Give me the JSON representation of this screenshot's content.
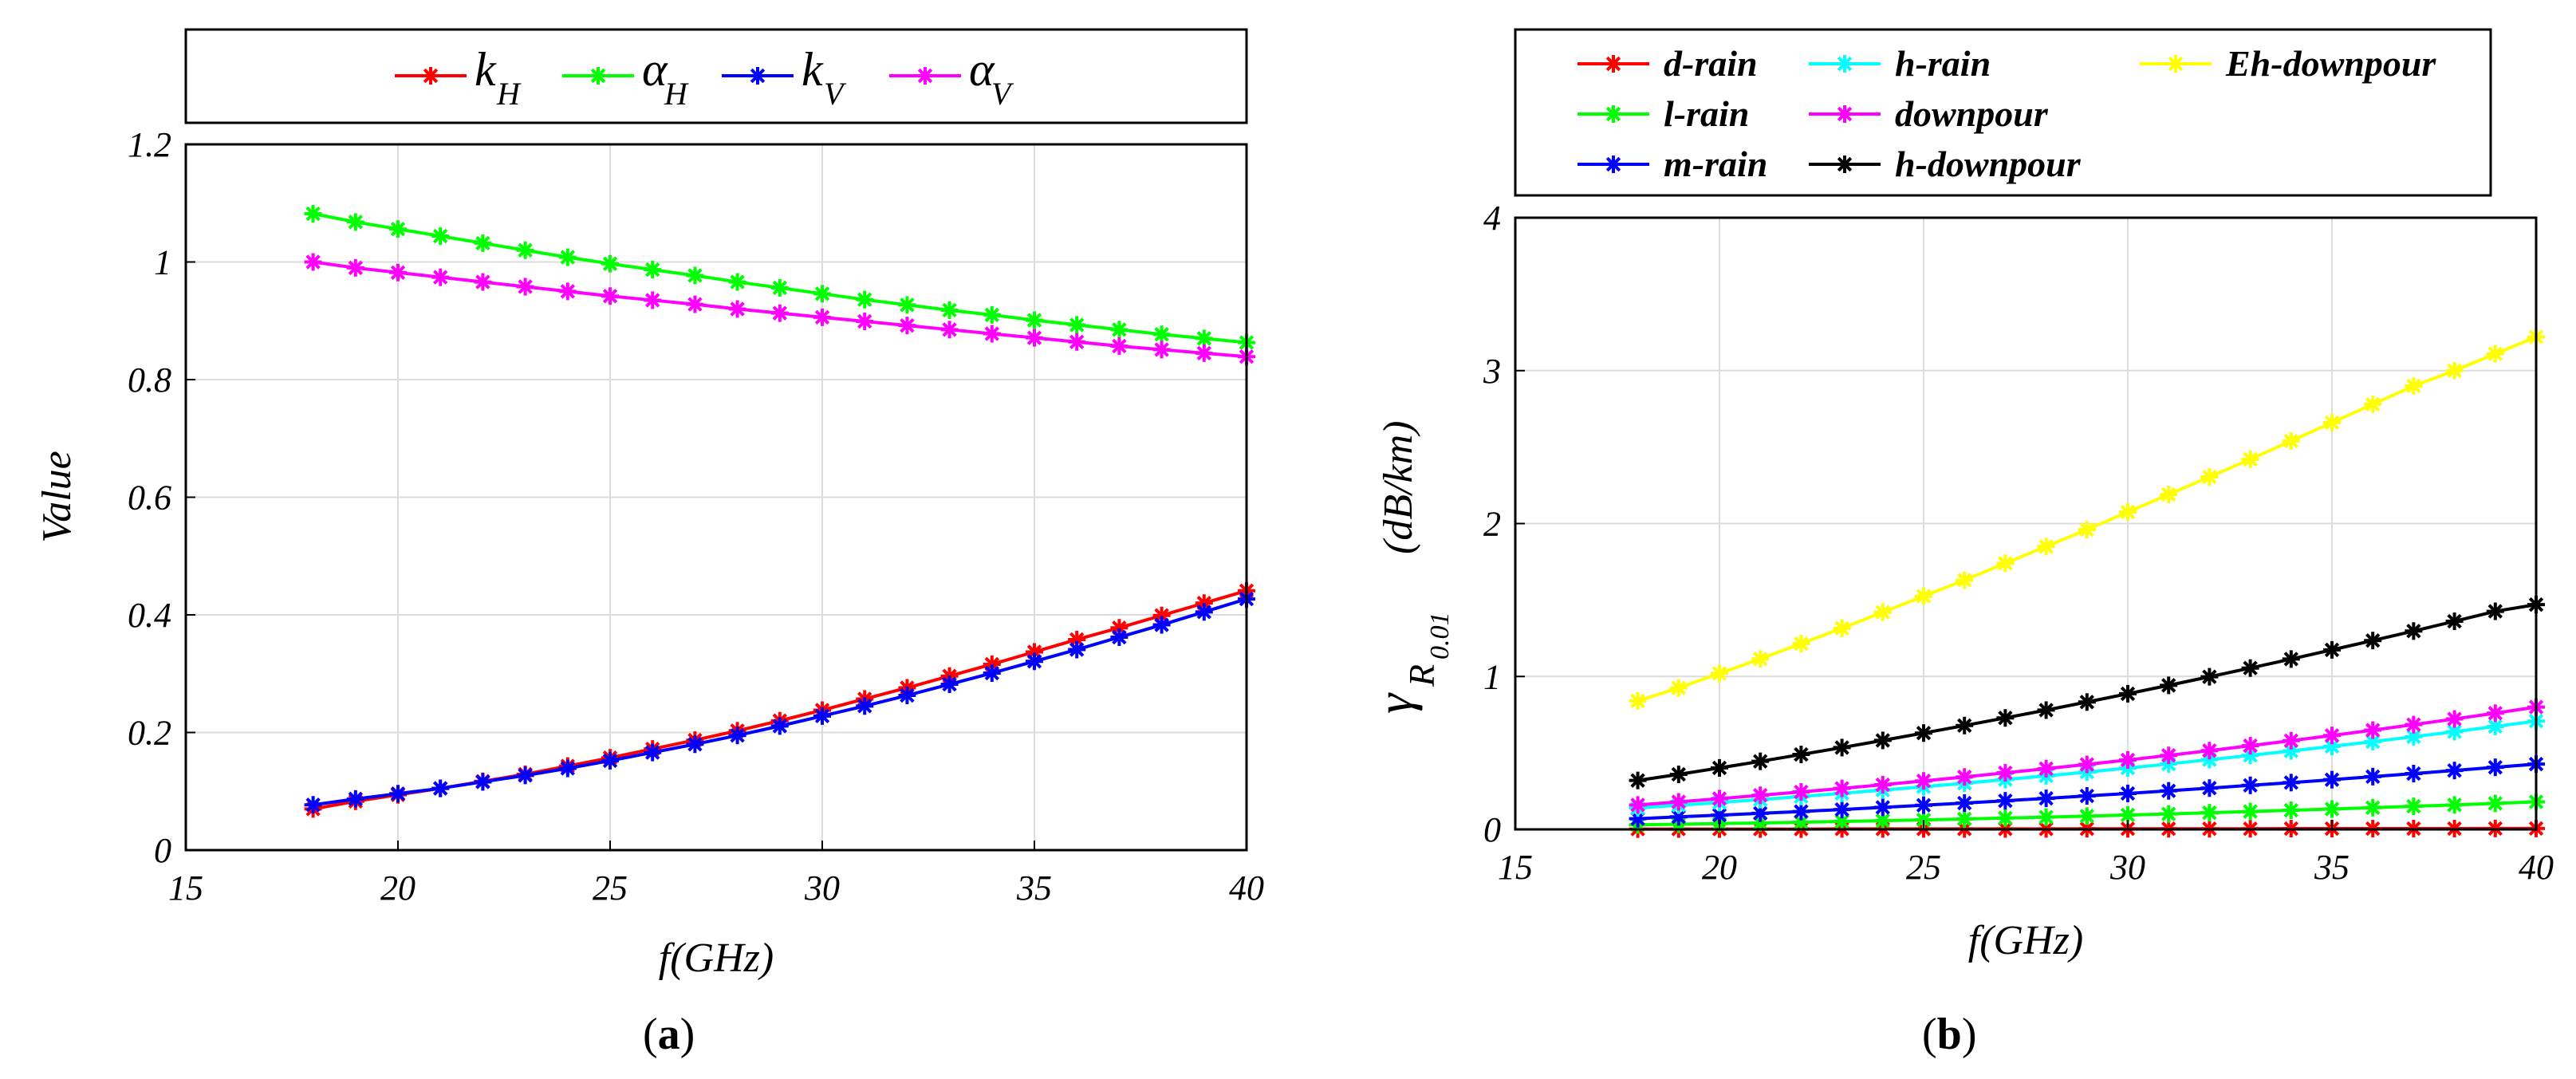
{
  "chart_data": [
    {
      "type": "line",
      "caption": "a",
      "title": "",
      "xlabel": "f(GHz)",
      "ylabel": "Value",
      "xlim": [
        15,
        40
      ],
      "ylim": [
        0,
        1.2
      ],
      "xticks": [
        "15",
        "20",
        "25",
        "30",
        "35",
        "40"
      ],
      "yticks": [
        "0",
        "0.2",
        "0.4",
        "0.6",
        "0.8",
        "1",
        "1.2"
      ],
      "grid": true,
      "legend_position": "top",
      "x": [
        18,
        19,
        20,
        21,
        22,
        23,
        24,
        25,
        26,
        27,
        28,
        29,
        30,
        31,
        32,
        33,
        34,
        35,
        36,
        37,
        38,
        39,
        40
      ],
      "series": [
        {
          "name": "k_H",
          "label_main": "k",
          "label_sub": "H",
          "color": "#ff0000",
          "values": [
            0.07,
            0.083,
            0.094,
            0.105,
            0.117,
            0.129,
            0.143,
            0.157,
            0.172,
            0.187,
            0.203,
            0.22,
            0.238,
            0.257,
            0.276,
            0.296,
            0.316,
            0.337,
            0.358,
            0.378,
            0.399,
            0.42,
            0.441
          ]
        },
        {
          "name": "alpha_H",
          "label_main": "α",
          "label_sub": "H",
          "color": "#00ff00",
          "values": [
            1.082,
            1.068,
            1.056,
            1.044,
            1.032,
            1.02,
            1.008,
            0.997,
            0.987,
            0.977,
            0.966,
            0.956,
            0.946,
            0.936,
            0.927,
            0.918,
            0.91,
            0.901,
            0.893,
            0.885,
            0.877,
            0.87,
            0.863
          ]
        },
        {
          "name": "k_V",
          "label_main": "k",
          "label_sub": "V",
          "color": "#0000ff",
          "values": [
            0.077,
            0.087,
            0.096,
            0.105,
            0.116,
            0.127,
            0.139,
            0.152,
            0.166,
            0.18,
            0.195,
            0.211,
            0.228,
            0.245,
            0.263,
            0.282,
            0.301,
            0.321,
            0.341,
            0.362,
            0.383,
            0.405,
            0.427
          ]
        },
        {
          "name": "alpha_V",
          "label_main": "α",
          "label_sub": "V",
          "color": "#ff00ff",
          "values": [
            1.0,
            0.99,
            0.982,
            0.974,
            0.966,
            0.958,
            0.95,
            0.942,
            0.935,
            0.928,
            0.92,
            0.913,
            0.906,
            0.899,
            0.892,
            0.885,
            0.878,
            0.871,
            0.864,
            0.857,
            0.851,
            0.845,
            0.839
          ]
        }
      ]
    },
    {
      "type": "line",
      "caption": "b",
      "title": "",
      "xlabel": "f(GHz)",
      "ylabel_symbol": "γ",
      "ylabel_sub_letter": "R",
      "ylabel_sub_sub": "0.01",
      "ylabel_unit": "(dB/km)",
      "xlim": [
        15,
        40
      ],
      "ylim": [
        0,
        4
      ],
      "xticks": [
        "15",
        "20",
        "25",
        "30",
        "35",
        "40"
      ],
      "yticks": [
        "0",
        "1",
        "2",
        "3",
        "4"
      ],
      "grid": true,
      "legend_position": "top",
      "x": [
        18,
        19,
        20,
        21,
        22,
        23,
        24,
        25,
        26,
        27,
        28,
        29,
        30,
        31,
        32,
        33,
        34,
        35,
        36,
        37,
        38,
        39,
        40
      ],
      "series": [
        {
          "name": "d-rain",
          "color": "#ff0000",
          "values": [
            0.002,
            0.002,
            0.002,
            0.002,
            0.002,
            0.003,
            0.003,
            0.003,
            0.003,
            0.003,
            0.003,
            0.004,
            0.004,
            0.004,
            0.004,
            0.004,
            0.005,
            0.005,
            0.005,
            0.005,
            0.005,
            0.006,
            0.006
          ]
        },
        {
          "name": "l-rain",
          "color": "#00ff00",
          "values": [
            0.03,
            0.034,
            0.038,
            0.042,
            0.047,
            0.052,
            0.057,
            0.062,
            0.068,
            0.074,
            0.08,
            0.087,
            0.094,
            0.101,
            0.109,
            0.117,
            0.125,
            0.133,
            0.142,
            0.151,
            0.16,
            0.17,
            0.18
          ]
        },
        {
          "name": "m-rain",
          "color": "#0000ff",
          "values": [
            0.07,
            0.082,
            0.093,
            0.105,
            0.117,
            0.13,
            0.144,
            0.158,
            0.172,
            0.187,
            0.203,
            0.219,
            0.235,
            0.252,
            0.27,
            0.288,
            0.306,
            0.325,
            0.345,
            0.365,
            0.385,
            0.406,
            0.427
          ]
        },
        {
          "name": "h-rain",
          "color": "#00ffff",
          "values": [
            0.14,
            0.158,
            0.176,
            0.195,
            0.215,
            0.236,
            0.257,
            0.279,
            0.302,
            0.326,
            0.35,
            0.375,
            0.401,
            0.428,
            0.456,
            0.484,
            0.513,
            0.543,
            0.574,
            0.606,
            0.639,
            0.673,
            0.708
          ]
        },
        {
          "name": "downpour",
          "color": "#ff00ff",
          "values": [
            0.16,
            0.18,
            0.201,
            0.223,
            0.245,
            0.268,
            0.292,
            0.317,
            0.343,
            0.37,
            0.397,
            0.425,
            0.454,
            0.484,
            0.515,
            0.547,
            0.58,
            0.614,
            0.649,
            0.685,
            0.722,
            0.76,
            0.8
          ]
        },
        {
          "name": "h-downpour",
          "color": "#000000",
          "values": [
            0.32,
            0.36,
            0.402,
            0.445,
            0.49,
            0.535,
            0.582,
            0.63,
            0.679,
            0.729,
            0.78,
            0.833,
            0.887,
            0.942,
            0.998,
            1.055,
            1.114,
            1.174,
            1.235,
            1.297,
            1.361,
            1.426,
            1.47
          ]
        },
        {
          "name": "Eh-downpour",
          "color": "#ffff00",
          "values": [
            0.84,
            0.925,
            1.02,
            1.115,
            1.215,
            1.315,
            1.42,
            1.525,
            1.63,
            1.74,
            1.85,
            1.96,
            2.075,
            2.19,
            2.305,
            2.42,
            2.54,
            2.66,
            2.78,
            2.9,
            3.0,
            3.11,
            3.22
          ]
        }
      ]
    }
  ]
}
